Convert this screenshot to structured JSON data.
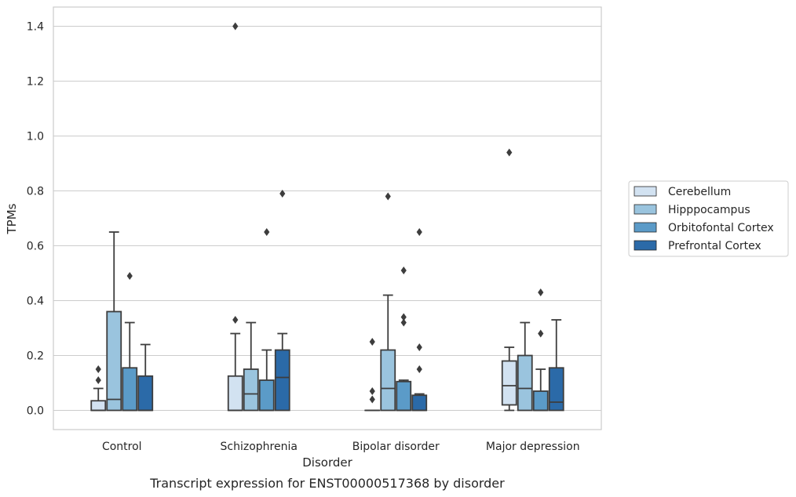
{
  "caption": "Transcript expression for ENST00000517368 by disorder",
  "chart_data": {
    "type": "box",
    "xlabel": "Disorder",
    "ylabel": "TPMs",
    "ylim": [
      -0.07,
      1.47
    ],
    "yticks": [
      "0.0",
      "0.2",
      "0.4",
      "0.6",
      "0.8",
      "1.0",
      "1.2",
      "1.4"
    ],
    "ytick_values": [
      0,
      0.2,
      0.4,
      0.6,
      0.8,
      1.0,
      1.2,
      1.4
    ],
    "grid": "horizontal",
    "legend_position": "right",
    "categories": [
      "Control",
      "Schizophrenia",
      "Bipolar disorder",
      "Major depression"
    ],
    "series": [
      {
        "name": "Cerebellum",
        "color": "#d2e2f1",
        "boxes": [
          {
            "low": 0.0,
            "q1": 0.0,
            "median": 0.0,
            "q3": 0.035,
            "high": 0.08,
            "outliers": [
              0.11,
              0.15
            ]
          },
          {
            "low": 0.0,
            "q1": 0.0,
            "median": 0.0,
            "q3": 0.125,
            "high": 0.28,
            "outliers": [
              0.33,
              1.4
            ]
          },
          {
            "low": 0.0,
            "q1": 0.0,
            "median": 0.0,
            "q3": 0.0,
            "high": 0.0,
            "outliers": [
              0.04,
              0.07,
              0.25
            ]
          },
          {
            "low": 0.0,
            "q1": 0.02,
            "median": 0.09,
            "q3": 0.18,
            "high": 0.23,
            "outliers": [
              0.94
            ]
          }
        ]
      },
      {
        "name": "Hipppocampus",
        "color": "#9ac4de",
        "boxes": [
          {
            "low": 0.0,
            "q1": 0.0,
            "median": 0.04,
            "q3": 0.36,
            "high": 0.65,
            "outliers": []
          },
          {
            "low": 0.0,
            "q1": 0.0,
            "median": 0.06,
            "q3": 0.15,
            "high": 0.32,
            "outliers": []
          },
          {
            "low": 0.0,
            "q1": 0.0,
            "median": 0.08,
            "q3": 0.22,
            "high": 0.42,
            "outliers": [
              0.78
            ]
          },
          {
            "low": 0.0,
            "q1": 0.0,
            "median": 0.08,
            "q3": 0.2,
            "high": 0.32,
            "outliers": []
          }
        ]
      },
      {
        "name": "Orbitofontal Cortex",
        "color": "#5b9bc8",
        "boxes": [
          {
            "low": 0.0,
            "q1": 0.0,
            "median": 0.0,
            "q3": 0.155,
            "high": 0.32,
            "outliers": [
              0.49
            ]
          },
          {
            "low": 0.0,
            "q1": 0.0,
            "median": 0.0,
            "q3": 0.11,
            "high": 0.22,
            "outliers": [
              0.65
            ]
          },
          {
            "low": 0.0,
            "q1": 0.0,
            "median": 0.0,
            "q3": 0.105,
            "high": 0.11,
            "outliers": [
              0.32,
              0.34,
              0.51
            ]
          },
          {
            "low": 0.0,
            "q1": 0.0,
            "median": 0.0,
            "q3": 0.07,
            "high": 0.15,
            "outliers": [
              0.28,
              0.43
            ]
          }
        ]
      },
      {
        "name": "Prefrontal Cortex",
        "color": "#2b6aa8",
        "boxes": [
          {
            "low": 0.0,
            "q1": 0.0,
            "median": 0.0,
            "q3": 0.125,
            "high": 0.24,
            "outliers": []
          },
          {
            "low": 0.0,
            "q1": 0.0,
            "median": 0.12,
            "q3": 0.22,
            "high": 0.28,
            "outliers": [
              0.79
            ]
          },
          {
            "low": 0.0,
            "q1": 0.0,
            "median": 0.0,
            "q3": 0.055,
            "high": 0.06,
            "outliers": [
              0.15,
              0.23,
              0.65
            ]
          },
          {
            "low": 0.0,
            "q1": 0.0,
            "median": 0.03,
            "q3": 0.155,
            "high": 0.33,
            "outliers": []
          }
        ]
      }
    ]
  }
}
